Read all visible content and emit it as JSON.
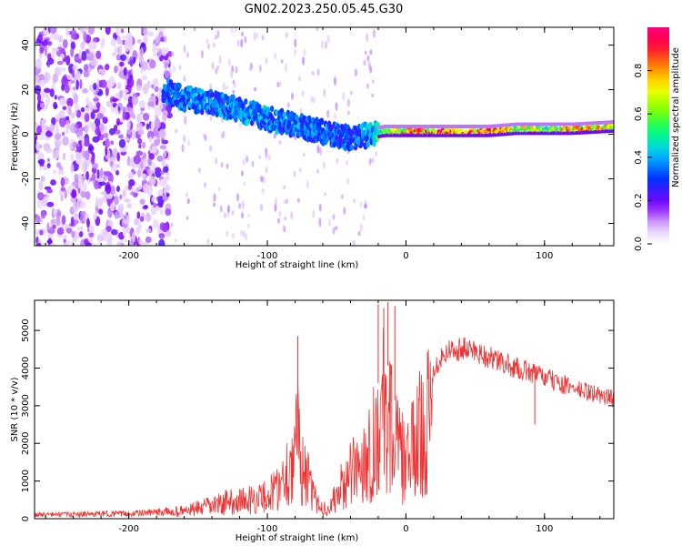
{
  "figure_title": "GN02.2023.250.05.45.G30",
  "chart_data": [
    {
      "type": "heatmap",
      "xlabel": "Height of straight line (km)",
      "ylabel": "Frequency (Hz)",
      "xlim": [
        -268,
        150
      ],
      "ylim": [
        -50,
        48
      ],
      "xticks": [
        -200,
        -100,
        0,
        100
      ],
      "yticks": [
        -40,
        -20,
        0,
        20,
        40
      ],
      "colorbar": {
        "label": "Normalized spectral amplitude",
        "range": [
          0,
          1
        ],
        "ticks": [
          0.0,
          0.2,
          0.4,
          0.6,
          0.8
        ],
        "colors": [
          "#ffffff",
          "#e4c8f8",
          "#8000ff",
          "#0030ff",
          "#00c8ff",
          "#00ff80",
          "#80ff00",
          "#ffff00",
          "#ff8000",
          "#ff0040",
          "#ff0080"
        ]
      },
      "ridge": [
        {
          "x": -175,
          "y": 20,
          "a": 0.35
        },
        {
          "x": -160,
          "y": 16,
          "a": 0.4
        },
        {
          "x": -140,
          "y": 14,
          "a": 0.4
        },
        {
          "x": -120,
          "y": 11,
          "a": 0.42
        },
        {
          "x": -100,
          "y": 7,
          "a": 0.42
        },
        {
          "x": -80,
          "y": 4,
          "a": 0.4
        },
        {
          "x": -60,
          "y": 1,
          "a": 0.38
        },
        {
          "x": -40,
          "y": -2,
          "a": 0.35
        },
        {
          "x": -25,
          "y": 0,
          "a": 0.45
        },
        {
          "x": -15,
          "y": 1,
          "a": 0.7
        },
        {
          "x": 0,
          "y": 1,
          "a": 0.85
        },
        {
          "x": 20,
          "y": 1,
          "a": 0.9
        },
        {
          "x": 40,
          "y": 1,
          "a": 0.95
        },
        {
          "x": 60,
          "y": 1,
          "a": 0.9
        },
        {
          "x": 80,
          "y": 2,
          "a": 0.75
        },
        {
          "x": 100,
          "y": 2,
          "a": 0.7
        },
        {
          "x": 120,
          "y": 2,
          "a": 0.85
        },
        {
          "x": 150,
          "y": 3,
          "a": 0.8
        }
      ]
    },
    {
      "type": "line",
      "xlabel": "Height of straight line (km)",
      "ylabel": "SNR (10 * v/v)",
      "xlim": [
        -268,
        150
      ],
      "ylim": [
        0,
        5800
      ],
      "xticks": [
        -200,
        -100,
        0,
        100
      ],
      "yticks": [
        0,
        1000,
        2000,
        3000,
        4000,
        5000
      ],
      "color": "#ee3333",
      "series": [
        {
          "x": [
            -268,
            -240,
            -220,
            -200,
            -180,
            -160,
            -150,
            -140,
            -130,
            -120,
            -110,
            -100,
            -95,
            -90,
            -85,
            -80,
            -78,
            -75,
            -72,
            -70,
            -68,
            -65,
            -62,
            -60,
            -58,
            -55,
            -52,
            -50,
            -47,
            -45,
            -42,
            -40,
            -37,
            -35,
            -32,
            -30,
            -27,
            -25,
            -22,
            -20,
            -17,
            -15,
            -12,
            -10,
            -7,
            -5,
            -2,
            0,
            2,
            5,
            8,
            10,
            15,
            20,
            25,
            30,
            40,
            50,
            60,
            70,
            80,
            90,
            100,
            110,
            120,
            130,
            140,
            150
          ],
          "y": [
            150,
            150,
            170,
            180,
            220,
            300,
            400,
            500,
            650,
            700,
            750,
            900,
            1100,
            1400,
            2000,
            2500,
            3200,
            2200,
            1700,
            1400,
            1000,
            700,
            500,
            400,
            400,
            450,
            700,
            900,
            1200,
            1300,
            1500,
            1700,
            1900,
            2000,
            2200,
            2400,
            2600,
            2800,
            3200,
            3600,
            4500,
            3800,
            4200,
            3400,
            3000,
            2600,
            2300,
            2100,
            2300,
            2700,
            3000,
            3300,
            3800,
            4200,
            4500,
            4700,
            4750,
            4700,
            4500,
            4350,
            4200,
            4100,
            3950,
            3800,
            3650,
            3550,
            3450,
            3350
          ],
          "spikes": [
            {
              "x": -78,
              "y": 4850
            },
            {
              "x": -20,
              "y": 5700
            },
            {
              "x": -16,
              "y": 5600
            },
            {
              "x": -13,
              "y": 5750
            },
            {
              "x": -8,
              "y": 5650
            },
            {
              "x": 93,
              "y": 2500
            }
          ]
        }
      ]
    }
  ]
}
